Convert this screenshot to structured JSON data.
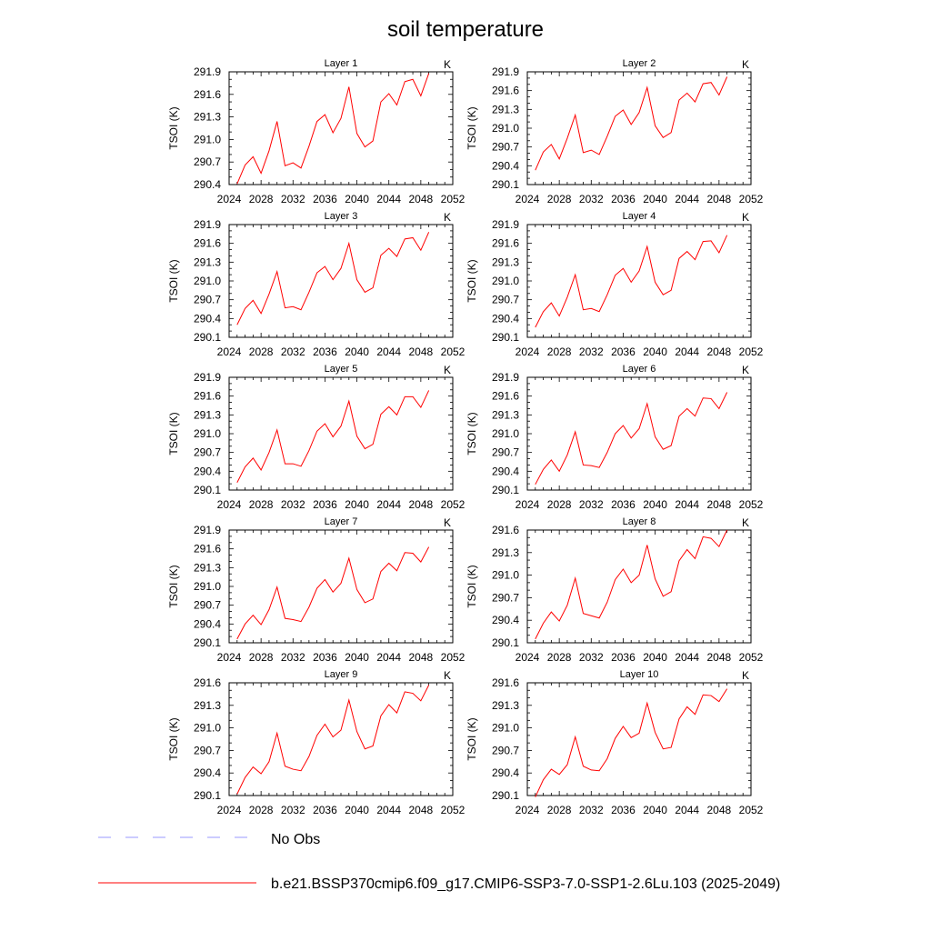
{
  "title": "soil temperature",
  "colors": {
    "model": "#ff0000",
    "obs": "#9999ff",
    "axis": "#000000"
  },
  "legend": {
    "obs_label": "No Obs",
    "model_label": "b.e21.BSSP370cmip6.f09_g17.CMIP6-SSP3-7.0-SSP1-2.6Lu.103 (2025-2049)"
  },
  "chart_data": [
    {
      "type": "line",
      "title": "Layer 1",
      "unit_label": "K",
      "ylabel": "TSOI  (K)",
      "xlim": [
        2024,
        2052
      ],
      "ylim": [
        290.4,
        291.9
      ],
      "xticks": [
        2024,
        2028,
        2032,
        2036,
        2040,
        2044,
        2048,
        2052
      ],
      "yticks": [
        290.4,
        290.7,
        291.0,
        291.3,
        291.6,
        291.9
      ],
      "x": [
        2025,
        2026,
        2027,
        2028,
        2029,
        2030,
        2031,
        2032,
        2033,
        2034,
        2035,
        2036,
        2037,
        2038,
        2039,
        2040,
        2041,
        2042,
        2043,
        2044,
        2045,
        2046,
        2047,
        2048,
        2049
      ],
      "series": [
        {
          "name": "b.e21.BSSP370cmip6.f09_g17.CMIP6-SSP3-7.0-SSP1-2.6Lu.103 (2025-2049)",
          "values": [
            290.41,
            290.66,
            290.77,
            290.55,
            290.85,
            291.24,
            290.65,
            290.69,
            290.62,
            290.91,
            291.24,
            291.33,
            291.09,
            291.28,
            291.7,
            291.08,
            290.9,
            290.98,
            291.5,
            291.61,
            291.46,
            291.77,
            291.8,
            291.58,
            291.88
          ]
        }
      ]
    },
    {
      "type": "line",
      "title": "Layer 2",
      "unit_label": "K",
      "ylabel": "TSOI  (K)",
      "xlim": [
        2024,
        2052
      ],
      "ylim": [
        290.1,
        291.9
      ],
      "xticks": [
        2024,
        2028,
        2032,
        2036,
        2040,
        2044,
        2048,
        2052
      ],
      "yticks": [
        290.1,
        290.4,
        290.7,
        291.0,
        291.3,
        291.6,
        291.9
      ],
      "x": [
        2025,
        2026,
        2027,
        2028,
        2029,
        2030,
        2031,
        2032,
        2033,
        2034,
        2035,
        2036,
        2037,
        2038,
        2039,
        2040,
        2041,
        2042,
        2043,
        2044,
        2045,
        2046,
        2047,
        2048,
        2049
      ],
      "series": [
        {
          "name": "b.e21.BSSP370cmip6.f09_g17.CMIP6-SSP3-7.0-SSP1-2.6Lu.103 (2025-2049)",
          "values": [
            290.33,
            290.62,
            290.74,
            290.51,
            290.84,
            291.21,
            290.61,
            290.65,
            290.58,
            290.87,
            291.19,
            291.29,
            291.06,
            291.25,
            291.65,
            291.04,
            290.85,
            290.93,
            291.45,
            291.56,
            291.42,
            291.71,
            291.73,
            291.53,
            291.82
          ]
        }
      ]
    },
    {
      "type": "line",
      "title": "Layer 3",
      "unit_label": "K",
      "ylabel": "TSOI  (K)",
      "xlim": [
        2024,
        2052
      ],
      "ylim": [
        290.1,
        291.9
      ],
      "xticks": [
        2024,
        2028,
        2032,
        2036,
        2040,
        2044,
        2048,
        2052
      ],
      "yticks": [
        290.1,
        290.4,
        290.7,
        291.0,
        291.3,
        291.6,
        291.9
      ],
      "x": [
        2025,
        2026,
        2027,
        2028,
        2029,
        2030,
        2031,
        2032,
        2033,
        2034,
        2035,
        2036,
        2037,
        2038,
        2039,
        2040,
        2041,
        2042,
        2043,
        2044,
        2045,
        2046,
        2047,
        2048,
        2049
      ],
      "series": [
        {
          "name": "b.e21.BSSP370cmip6.f09_g17.CMIP6-SSP3-7.0-SSP1-2.6Lu.103 (2025-2049)",
          "values": [
            290.3,
            290.56,
            290.69,
            290.48,
            290.79,
            291.15,
            290.57,
            290.59,
            290.54,
            290.82,
            291.13,
            291.23,
            291.02,
            291.2,
            291.6,
            291.02,
            290.82,
            290.89,
            291.41,
            291.52,
            291.39,
            291.67,
            291.69,
            291.49,
            291.78
          ]
        }
      ]
    },
    {
      "type": "line",
      "title": "Layer 4",
      "unit_label": "K",
      "ylabel": "TSOI  (K)",
      "xlim": [
        2024,
        2052
      ],
      "ylim": [
        290.1,
        291.9
      ],
      "xticks": [
        2024,
        2028,
        2032,
        2036,
        2040,
        2044,
        2048,
        2052
      ],
      "yticks": [
        290.1,
        290.4,
        290.7,
        291.0,
        291.3,
        291.6,
        291.9
      ],
      "x": [
        2025,
        2026,
        2027,
        2028,
        2029,
        2030,
        2031,
        2032,
        2033,
        2034,
        2035,
        2036,
        2037,
        2038,
        2039,
        2040,
        2041,
        2042,
        2043,
        2044,
        2045,
        2046,
        2047,
        2048,
        2049
      ],
      "series": [
        {
          "name": "b.e21.BSSP370cmip6.f09_g17.CMIP6-SSP3-7.0-SSP1-2.6Lu.103 (2025-2049)",
          "values": [
            290.26,
            290.51,
            290.65,
            290.44,
            290.74,
            291.1,
            290.54,
            290.56,
            290.51,
            290.78,
            291.09,
            291.2,
            290.98,
            291.16,
            291.55,
            290.98,
            290.78,
            290.85,
            291.36,
            291.47,
            291.34,
            291.63,
            291.64,
            291.45,
            291.73
          ]
        }
      ]
    },
    {
      "type": "line",
      "title": "Layer 5",
      "unit_label": "K",
      "ylabel": "TSOI  (K)",
      "xlim": [
        2024,
        2052
      ],
      "ylim": [
        290.1,
        291.9
      ],
      "xticks": [
        2024,
        2028,
        2032,
        2036,
        2040,
        2044,
        2048,
        2052
      ],
      "yticks": [
        290.1,
        290.4,
        290.7,
        291.0,
        291.3,
        291.6,
        291.9
      ],
      "x": [
        2025,
        2026,
        2027,
        2028,
        2029,
        2030,
        2031,
        2032,
        2033,
        2034,
        2035,
        2036,
        2037,
        2038,
        2039,
        2040,
        2041,
        2042,
        2043,
        2044,
        2045,
        2046,
        2047,
        2048,
        2049
      ],
      "series": [
        {
          "name": "b.e21.BSSP370cmip6.f09_g17.CMIP6-SSP3-7.0-SSP1-2.6Lu.103 (2025-2049)",
          "values": [
            290.22,
            290.47,
            290.61,
            290.42,
            290.7,
            291.06,
            290.52,
            290.52,
            290.48,
            290.73,
            291.04,
            291.16,
            290.95,
            291.12,
            291.52,
            290.96,
            290.76,
            290.83,
            291.31,
            291.43,
            291.3,
            291.59,
            291.59,
            291.42,
            291.69
          ]
        }
      ]
    },
    {
      "type": "line",
      "title": "Layer 6",
      "unit_label": "K",
      "ylabel": "TSOI  (K)",
      "xlim": [
        2024,
        2052
      ],
      "ylim": [
        290.1,
        291.9
      ],
      "xticks": [
        2024,
        2028,
        2032,
        2036,
        2040,
        2044,
        2048,
        2052
      ],
      "yticks": [
        290.1,
        290.4,
        290.7,
        291.0,
        291.3,
        291.6,
        291.9
      ],
      "x": [
        2025,
        2026,
        2027,
        2028,
        2029,
        2030,
        2031,
        2032,
        2033,
        2034,
        2035,
        2036,
        2037,
        2038,
        2039,
        2040,
        2041,
        2042,
        2043,
        2044,
        2045,
        2046,
        2047,
        2048,
        2049
      ],
      "series": [
        {
          "name": "b.e21.BSSP370cmip6.f09_g17.CMIP6-SSP3-7.0-SSP1-2.6Lu.103 (2025-2049)",
          "values": [
            290.19,
            290.43,
            290.58,
            290.4,
            290.66,
            291.03,
            290.5,
            290.49,
            290.46,
            290.7,
            291.0,
            291.13,
            290.93,
            291.08,
            291.48,
            290.95,
            290.75,
            290.81,
            291.28,
            291.4,
            291.28,
            291.57,
            291.56,
            291.4,
            291.66
          ]
        }
      ]
    },
    {
      "type": "line",
      "title": "Layer 7",
      "unit_label": "K",
      "ylabel": "TSOI  (K)",
      "xlim": [
        2024,
        2052
      ],
      "ylim": [
        290.1,
        291.9
      ],
      "xticks": [
        2024,
        2028,
        2032,
        2036,
        2040,
        2044,
        2048,
        2052
      ],
      "yticks": [
        290.1,
        290.4,
        290.7,
        291.0,
        291.3,
        291.6,
        291.9
      ],
      "x": [
        2025,
        2026,
        2027,
        2028,
        2029,
        2030,
        2031,
        2032,
        2033,
        2034,
        2035,
        2036,
        2037,
        2038,
        2039,
        2040,
        2041,
        2042,
        2043,
        2044,
        2045,
        2046,
        2047,
        2048,
        2049
      ],
      "series": [
        {
          "name": "b.e21.BSSP370cmip6.f09_g17.CMIP6-SSP3-7.0-SSP1-2.6Lu.103 (2025-2049)",
          "values": [
            290.16,
            290.4,
            290.54,
            290.39,
            290.63,
            290.99,
            290.49,
            290.47,
            290.44,
            290.67,
            290.97,
            291.11,
            290.91,
            291.05,
            291.45,
            290.95,
            290.74,
            290.8,
            291.24,
            291.37,
            291.25,
            291.54,
            291.53,
            291.39,
            291.63
          ]
        }
      ]
    },
    {
      "type": "line",
      "title": "Layer 8",
      "unit_label": "K",
      "ylabel": "TSOI  (K)",
      "xlim": [
        2024,
        2052
      ],
      "ylim": [
        290.1,
        291.6
      ],
      "xticks": [
        2024,
        2028,
        2032,
        2036,
        2040,
        2044,
        2048,
        2052
      ],
      "yticks": [
        290.1,
        290.4,
        290.7,
        291.0,
        291.3,
        291.6
      ],
      "x": [
        2025,
        2026,
        2027,
        2028,
        2029,
        2030,
        2031,
        2032,
        2033,
        2034,
        2035,
        2036,
        2037,
        2038,
        2039,
        2040,
        2041,
        2042,
        2043,
        2044,
        2045,
        2046,
        2047,
        2048,
        2049
      ],
      "series": [
        {
          "name": "b.e21.BSSP370cmip6.f09_g17.CMIP6-SSP3-7.0-SSP1-2.6Lu.103 (2025-2049)",
          "values": [
            290.15,
            290.36,
            290.51,
            290.39,
            290.6,
            290.96,
            290.49,
            290.46,
            290.43,
            290.64,
            290.94,
            291.08,
            290.9,
            291.0,
            291.4,
            290.95,
            290.72,
            290.78,
            291.19,
            291.34,
            291.22,
            291.51,
            291.49,
            291.38,
            291.6
          ]
        }
      ]
    },
    {
      "type": "line",
      "title": "Layer 9",
      "unit_label": "K",
      "ylabel": "TSOI  (K)",
      "xlim": [
        2024,
        2052
      ],
      "ylim": [
        290.1,
        291.6
      ],
      "xticks": [
        2024,
        2028,
        2032,
        2036,
        2040,
        2044,
        2048,
        2052
      ],
      "yticks": [
        290.1,
        290.4,
        290.7,
        291.0,
        291.3,
        291.6
      ],
      "x": [
        2025,
        2026,
        2027,
        2028,
        2029,
        2030,
        2031,
        2032,
        2033,
        2034,
        2035,
        2036,
        2037,
        2038,
        2039,
        2040,
        2041,
        2042,
        2043,
        2044,
        2045,
        2046,
        2047,
        2048,
        2049
      ],
      "series": [
        {
          "name": "b.e21.BSSP370cmip6.f09_g17.CMIP6-SSP3-7.0-SSP1-2.6Lu.103 (2025-2049)",
          "values": [
            290.12,
            290.34,
            290.48,
            290.39,
            290.55,
            290.93,
            290.49,
            290.45,
            290.43,
            290.62,
            290.9,
            291.05,
            290.88,
            290.97,
            291.37,
            290.95,
            290.72,
            290.76,
            291.16,
            291.31,
            291.2,
            291.48,
            291.46,
            291.36,
            291.57
          ]
        }
      ]
    },
    {
      "type": "line",
      "title": "Layer 10",
      "unit_label": "K",
      "ylabel": "TSOI  (K)",
      "xlim": [
        2024,
        2052
      ],
      "ylim": [
        290.1,
        291.6
      ],
      "xticks": [
        2024,
        2028,
        2032,
        2036,
        2040,
        2044,
        2048,
        2052
      ],
      "yticks": [
        290.1,
        290.4,
        290.7,
        291.0,
        291.3,
        291.6
      ],
      "x": [
        2025,
        2026,
        2027,
        2028,
        2029,
        2030,
        2031,
        2032,
        2033,
        2034,
        2035,
        2036,
        2037,
        2038,
        2039,
        2040,
        2041,
        2042,
        2043,
        2044,
        2045,
        2046,
        2047,
        2048,
        2049
      ],
      "series": [
        {
          "name": "b.e21.BSSP370cmip6.f09_g17.CMIP6-SSP3-7.0-SSP1-2.6Lu.103 (2025-2049)",
          "values": [
            290.08,
            290.31,
            290.45,
            290.38,
            290.51,
            290.88,
            290.49,
            290.44,
            290.43,
            290.59,
            290.86,
            291.02,
            290.87,
            290.93,
            291.33,
            290.94,
            290.72,
            290.74,
            291.12,
            291.28,
            291.18,
            291.44,
            291.43,
            291.35,
            291.52
          ]
        }
      ]
    }
  ]
}
